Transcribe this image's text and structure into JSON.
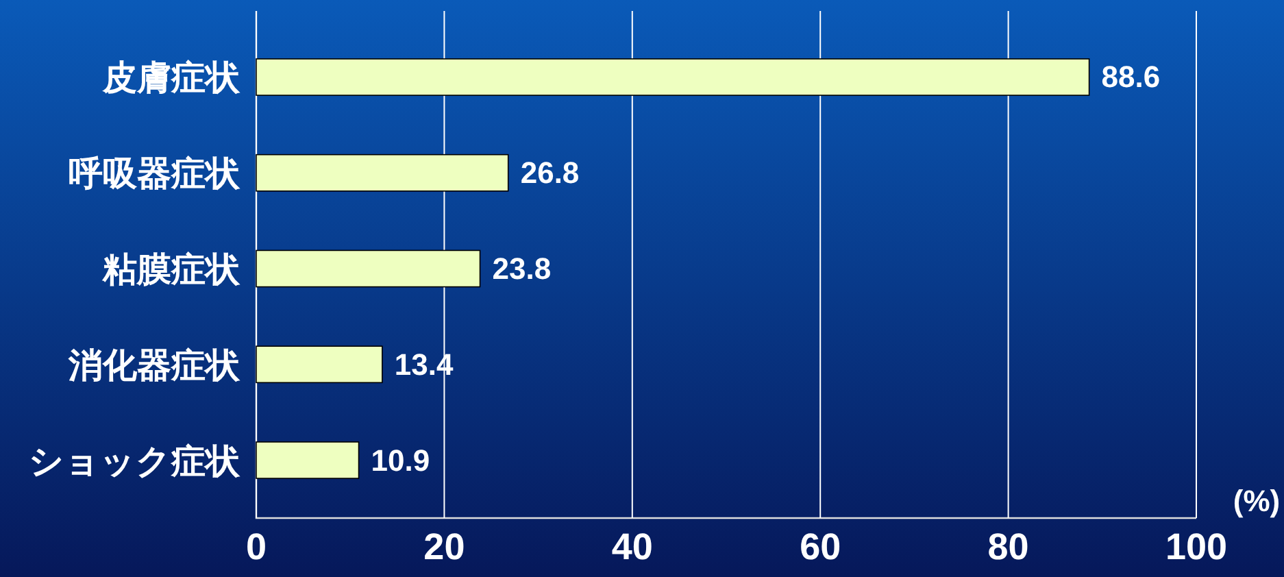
{
  "chart_data": {
    "type": "bar",
    "orientation": "horizontal",
    "xlabel": "(%)",
    "categories": [
      "皮膚症状",
      "呼吸器症状",
      "粘膜症状",
      "消化器症状",
      "ショック症状"
    ],
    "values": [
      88.6,
      26.8,
      23.8,
      13.4,
      10.9
    ],
    "color": "#eeffc0",
    "xlim": [
      0,
      100
    ],
    "xticks": [
      0,
      20,
      40,
      60,
      80,
      100
    ],
    "grid": "x",
    "data_labels": true
  }
}
